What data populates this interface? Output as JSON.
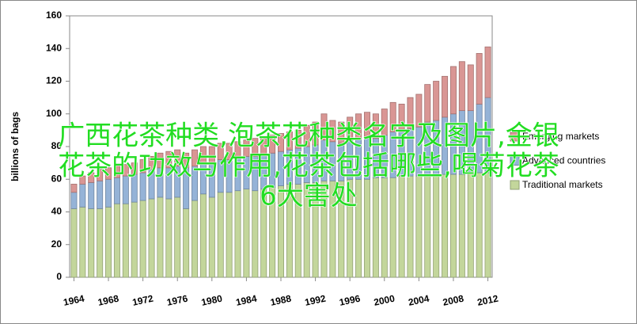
{
  "chart_data": {
    "type": "bar",
    "stacked": true,
    "y_label": "billions of bags",
    "x": [
      1964,
      1965,
      1966,
      1967,
      1968,
      1969,
      1970,
      1971,
      1972,
      1973,
      1974,
      1975,
      1976,
      1977,
      1978,
      1979,
      1980,
      1981,
      1982,
      1983,
      1984,
      1985,
      1986,
      1987,
      1988,
      1989,
      1990,
      1991,
      1992,
      1993,
      1994,
      1995,
      1996,
      1997,
      1998,
      1999,
      2000,
      2001,
      2002,
      2003,
      2004,
      2005,
      2006,
      2007,
      2008,
      2009,
      2010,
      2011,
      2012
    ],
    "xlim": [
      1963.5,
      2012.5
    ],
    "xticks": [
      1964,
      1968,
      1972,
      1976,
      1980,
      1984,
      1988,
      1992,
      1996,
      2000,
      2004,
      2008,
      2012
    ],
    "ylim": [
      0,
      160
    ],
    "yticks": [
      0,
      20,
      40,
      60,
      80,
      100,
      120,
      140,
      160
    ],
    "grid": false,
    "series": [
      {
        "name": "Traditional markets",
        "color": "#c3d69b",
        "values": [
          42,
          43,
          42,
          42,
          43,
          45,
          45,
          46,
          47,
          48,
          49,
          48,
          49,
          42,
          47,
          51,
          49,
          52,
          52,
          53,
          54,
          53,
          54,
          55,
          56,
          57,
          57,
          58,
          58,
          59,
          59,
          59,
          60,
          60,
          60,
          61,
          61,
          61,
          62,
          62,
          62,
          63,
          63,
          63,
          63,
          63,
          64,
          64,
          64
        ]
      },
      {
        "name": "Advanced countries",
        "color": "#95b3d7",
        "values": [
          10,
          14,
          16,
          17,
          17,
          16,
          17,
          17,
          17,
          18,
          18,
          19,
          19,
          25,
          21,
          19,
          21,
          20,
          20,
          20,
          20,
          21,
          21,
          21,
          21,
          21,
          22,
          22,
          23,
          25,
          24,
          23,
          24,
          25,
          25,
          24,
          26,
          28,
          27,
          29,
          30,
          32,
          33,
          35,
          37,
          39,
          38,
          42,
          46
        ]
      },
      {
        "name": "Emerging markets",
        "color": "#d99694",
        "values": [
          5,
          5,
          6,
          7,
          7,
          7,
          7,
          7,
          8,
          8,
          9,
          10,
          10,
          9,
          10,
          10,
          10,
          10,
          10,
          10,
          10,
          11,
          11,
          11,
          11,
          11,
          11,
          13,
          14,
          16,
          13,
          13,
          14,
          15,
          16,
          15,
          16,
          18,
          17,
          19,
          20,
          23,
          24,
          25,
          29,
          30,
          28,
          31,
          31
        ]
      }
    ],
    "overlay_text": [
      "广西花茶种类,泡茶花种类名字及图片,金银",
      "花茶的功效与作用,花茶包括哪些,喝菊花茶",
      "6大害处"
    ]
  }
}
